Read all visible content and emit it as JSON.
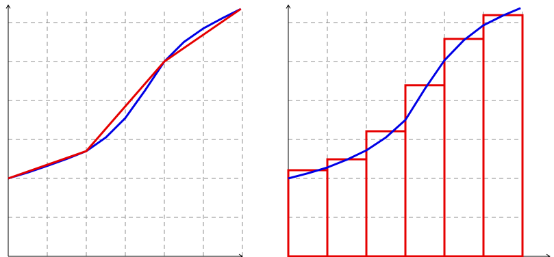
{
  "chart_data": [
    {
      "type": "line",
      "xlim": [
        0,
        6
      ],
      "ylim": [
        0,
        6.45
      ],
      "xticks": [
        0,
        1,
        2,
        3,
        4,
        5,
        6
      ],
      "yticks": [
        0,
        1,
        2,
        3,
        4,
        5,
        6
      ],
      "grid": true,
      "series": [
        {
          "color": "#0000e6",
          "x": [
            0,
            0.5,
            1,
            1.5,
            2,
            2.5,
            3,
            3.5,
            4,
            4.5,
            5,
            5.5,
            5.96
          ],
          "values": [
            2.0,
            2.15,
            2.32,
            2.5,
            2.7,
            3.05,
            3.55,
            4.25,
            5.0,
            5.5,
            5.85,
            6.12,
            6.35
          ]
        },
        {
          "color": "#e60000",
          "x": [
            0,
            2,
            4,
            5.96
          ],
          "values": [
            2.0,
            2.7,
            5.0,
            6.35
          ]
        }
      ]
    },
    {
      "type": "histogram",
      "xlim": [
        0,
        6.7
      ],
      "ylim": [
        0,
        6.45
      ],
      "xticks": [
        0,
        1,
        2,
        3,
        4,
        5,
        6
      ],
      "yticks": [
        0,
        1,
        2,
        3,
        4,
        5,
        6
      ],
      "grid": true,
      "bins": [
        0,
        1,
        2,
        3,
        4,
        5,
        6
      ],
      "values": [
        2.21,
        2.49,
        3.21,
        4.39,
        5.58,
        6.19
      ],
      "color": "#e60000",
      "series": [
        {
          "color": "#0000e6",
          "x": [
            0,
            0.5,
            1,
            1.5,
            2,
            2.5,
            3,
            3.5,
            4,
            4.5,
            5,
            5.5,
            5.95
          ],
          "values": [
            2.0,
            2.13,
            2.28,
            2.48,
            2.72,
            3.05,
            3.5,
            4.3,
            5.03,
            5.55,
            5.93,
            6.18,
            6.37
          ]
        }
      ]
    }
  ]
}
